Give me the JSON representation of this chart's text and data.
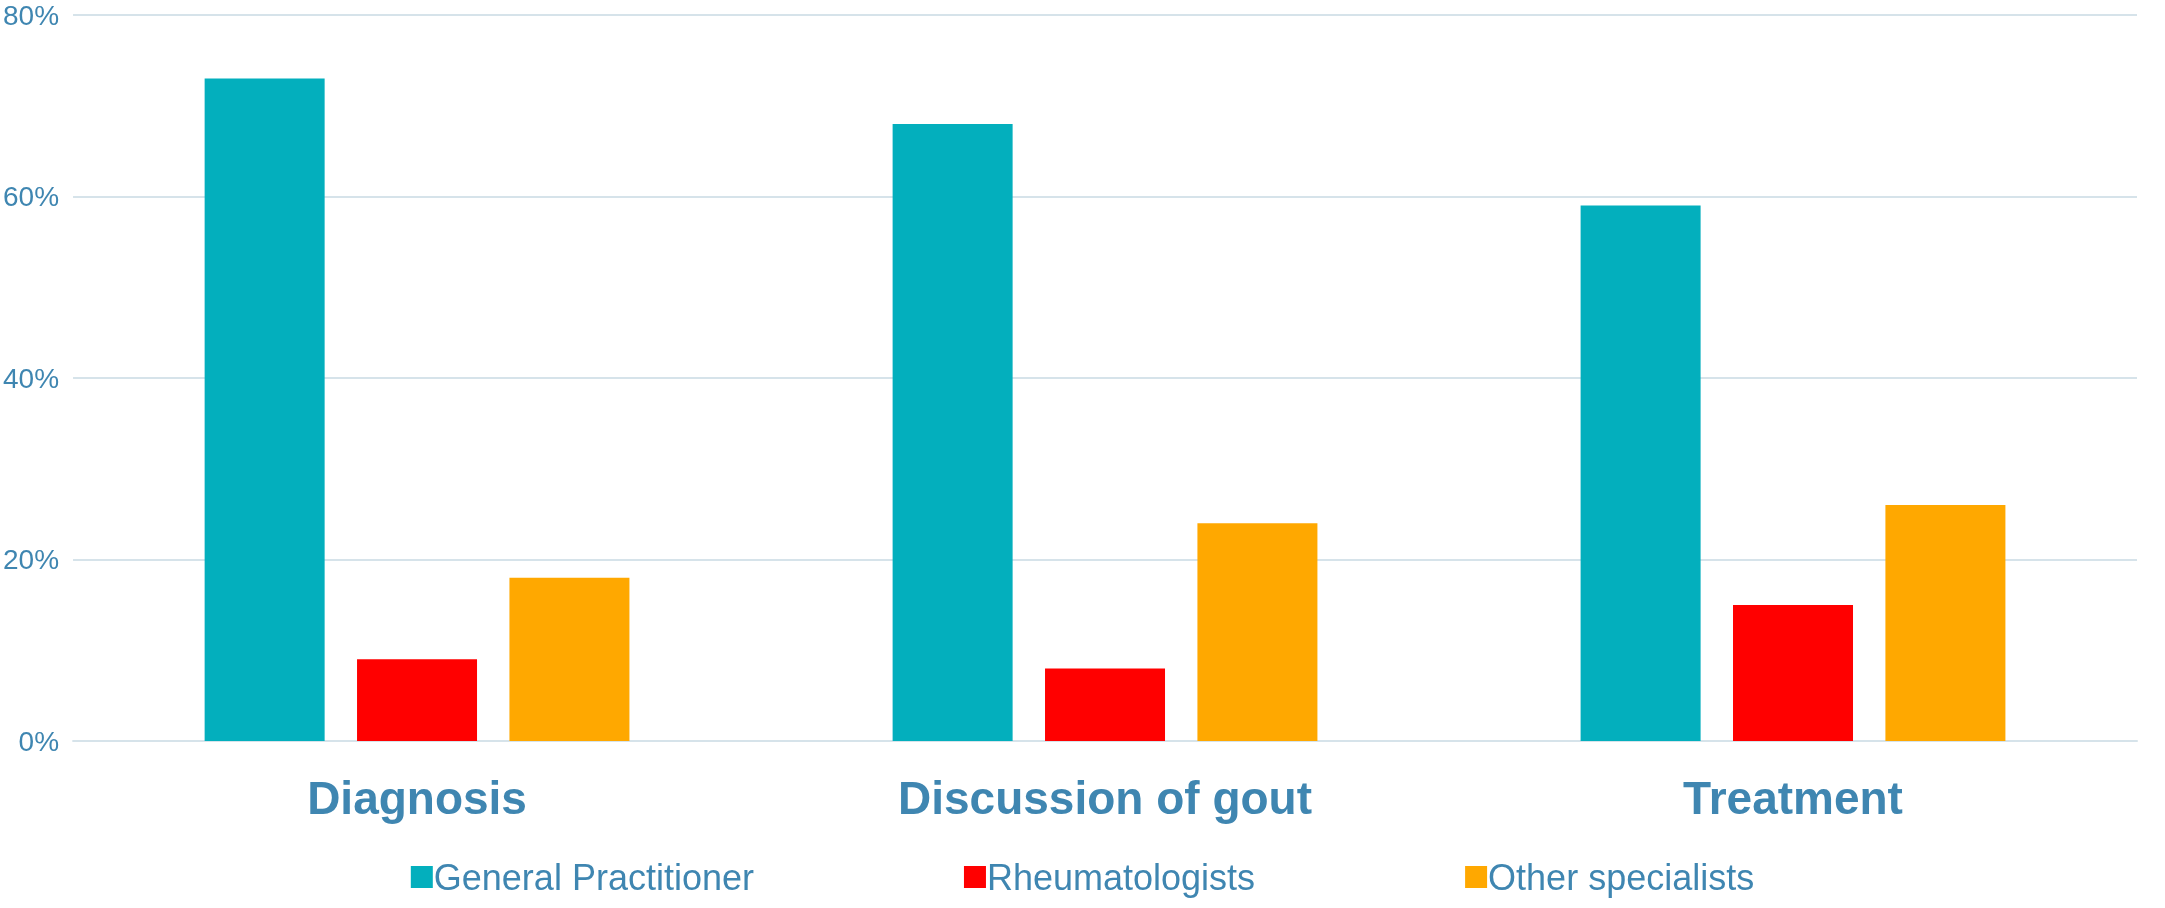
{
  "chart_data": {
    "type": "bar",
    "categories": [
      "Diagnosis",
      "Discussion of gout",
      "Treatment"
    ],
    "series": [
      {
        "name": "General Practitioner",
        "color": "#03afbd",
        "values": [
          73,
          68,
          59
        ]
      },
      {
        "name": "Rheumatologists",
        "color": "#ff0000",
        "values": [
          9,
          8,
          15
        ]
      },
      {
        "name": "Other specialists",
        "color": "#ffa800",
        "values": [
          18,
          24,
          26
        ]
      }
    ],
    "ylim": [
      0,
      80
    ],
    "yticks": [
      {
        "value": 0,
        "label": "0%"
      },
      {
        "value": 20,
        "label": "20%"
      },
      {
        "value": 40,
        "label": "40%"
      },
      {
        "value": 60,
        "label": "60%"
      },
      {
        "value": 80,
        "label": "80%"
      }
    ],
    "grid": "y",
    "legend": "bottom"
  }
}
